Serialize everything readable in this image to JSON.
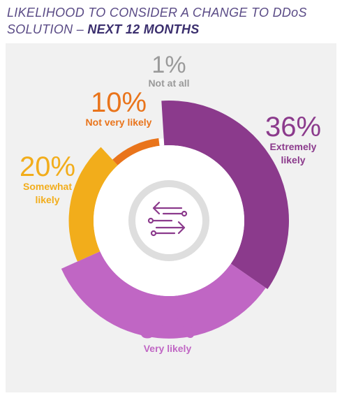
{
  "title": {
    "line1": "LIKELIHOOD TO CONSIDER A CHANGE TO DDoS",
    "line2_prefix": "SOLUTION – ",
    "line2_emphasis": "NEXT 12 MONTHS"
  },
  "center_icon": "bidirectional-arrows-circuit-icon",
  "chart_data": {
    "type": "pie",
    "title": "LIKELIHOOD TO CONSIDER A CHANGE TO DDoS SOLUTION – NEXT 12 MONTHS",
    "unit": "%",
    "slices": [
      {
        "label": "Extremely likely",
        "label_lines": [
          "Extremely",
          "likely"
        ],
        "value": 36,
        "color": "#8b3a8c"
      },
      {
        "label": "Very likely",
        "label_lines": [
          "Very likely"
        ],
        "value": 34,
        "color": "#c066c4"
      },
      {
        "label": "Somewhat likely",
        "label_lines": [
          "Somewhat",
          "likely"
        ],
        "value": 20,
        "color": "#f2ad1b"
      },
      {
        "label": "Not very likely",
        "label_lines": [
          "Not very likely"
        ],
        "value": 10,
        "color": "#e9741b"
      },
      {
        "label": "Not at all",
        "label_lines": [
          "Not at all"
        ],
        "value": 1,
        "color": "#9a9a9a"
      }
    ]
  }
}
